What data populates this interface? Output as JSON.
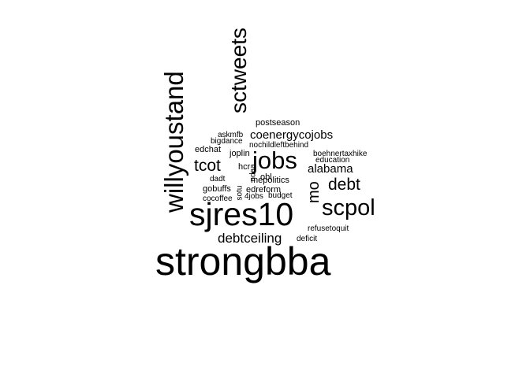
{
  "wordcloud": {
    "text_color": "#000000",
    "background": "#ffffff",
    "words": [
      {
        "text": "strongbba",
        "orientation": "horizontal"
      },
      {
        "text": "sjres10",
        "orientation": "horizontal"
      },
      {
        "text": "willyoustand",
        "orientation": "vertical"
      },
      {
        "text": "sctweets",
        "orientation": "vertical"
      },
      {
        "text": "jobs",
        "orientation": "horizontal"
      },
      {
        "text": "scpol",
        "orientation": "horizontal"
      },
      {
        "text": "debt",
        "orientation": "horizontal"
      },
      {
        "text": "tcot",
        "orientation": "horizontal"
      },
      {
        "text": "mo",
        "orientation": "vertical"
      },
      {
        "text": "debtceiling",
        "orientation": "horizontal"
      },
      {
        "text": "alabama",
        "orientation": "horizontal"
      },
      {
        "text": "coenergycojobs",
        "orientation": "horizontal"
      },
      {
        "text": "postseason",
        "orientation": "horizontal"
      },
      {
        "text": "askmfb",
        "orientation": "horizontal"
      },
      {
        "text": "bigdance",
        "orientation": "horizontal"
      },
      {
        "text": "nochildleftbehind",
        "orientation": "horizontal"
      },
      {
        "text": "edchat",
        "orientation": "horizontal"
      },
      {
        "text": "joplin",
        "orientation": "horizontal"
      },
      {
        "text": "boehnertaxhike",
        "orientation": "horizontal"
      },
      {
        "text": "education",
        "orientation": "horizontal"
      },
      {
        "text": "hcr",
        "orientation": "horizontal"
      },
      {
        "text": "ndaa",
        "orientation": "vertical"
      },
      {
        "text": "obl",
        "orientation": "horizontal"
      },
      {
        "text": "dadt",
        "orientation": "horizontal"
      },
      {
        "text": "mepolitics",
        "orientation": "horizontal"
      },
      {
        "text": "gobuffs",
        "orientation": "horizontal"
      },
      {
        "text": "sotu",
        "orientation": "vertical"
      },
      {
        "text": "edreform",
        "orientation": "horizontal"
      },
      {
        "text": "cocoffee",
        "orientation": "horizontal"
      },
      {
        "text": "4jobs",
        "orientation": "horizontal"
      },
      {
        "text": "budget",
        "orientation": "horizontal"
      },
      {
        "text": "refusetoquit",
        "orientation": "horizontal"
      },
      {
        "text": "deficit",
        "orientation": "horizontal"
      }
    ]
  }
}
